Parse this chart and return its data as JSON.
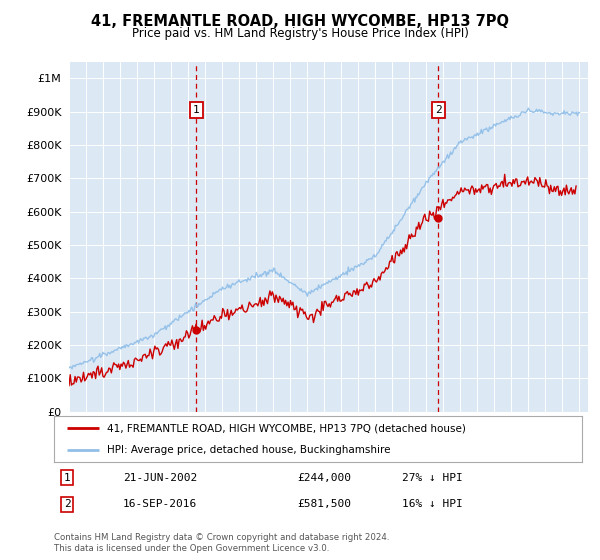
{
  "title": "41, FREMANTLE ROAD, HIGH WYCOMBE, HP13 7PQ",
  "subtitle": "Price paid vs. HM Land Registry's House Price Index (HPI)",
  "ytick_values": [
    0,
    100000,
    200000,
    300000,
    400000,
    500000,
    600000,
    700000,
    800000,
    900000,
    1000000
  ],
  "ylim": [
    0,
    1050000
  ],
  "background_color": "#dce9f5",
  "hpi_color": "#92bfe8",
  "price_color": "#cc0000",
  "marker1_x": 2002.47,
  "marker1_y": 244000,
  "marker2_x": 2016.71,
  "marker2_y": 581500,
  "legend_price_label": "41, FREMANTLE ROAD, HIGH WYCOMBE, HP13 7PQ (detached house)",
  "legend_hpi_label": "HPI: Average price, detached house, Buckinghamshire",
  "table_row1": [
    "1",
    "21-JUN-2002",
    "£244,000",
    "27% ↓ HPI"
  ],
  "table_row2": [
    "2",
    "16-SEP-2016",
    "£581,500",
    "16% ↓ HPI"
  ],
  "footnote": "Contains HM Land Registry data © Crown copyright and database right 2024.\nThis data is licensed under the Open Government Licence v3.0.",
  "xmin": 1995,
  "xmax": 2025.5
}
